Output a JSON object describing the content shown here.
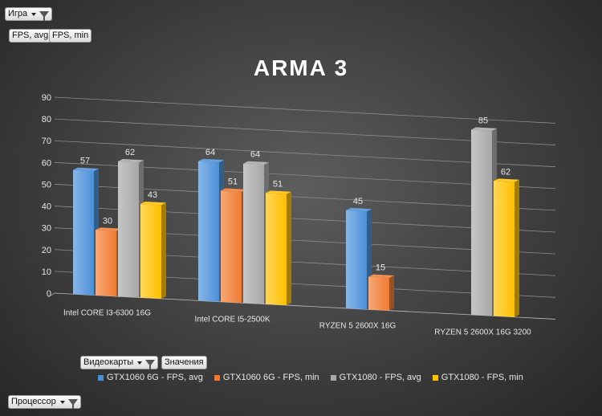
{
  "filters": {
    "game_label": "Игра",
    "values_fields": [
      "FPS, avg",
      "FPS, min"
    ],
    "videocards_label": "Видеокарты",
    "values_label": "Значения",
    "processor_label": "Процессор"
  },
  "chart_data": {
    "type": "bar",
    "title": "ARMA 3",
    "categories": [
      "Intel CORE I3-6300 16G",
      "Intel CORE I5-2500K",
      "RYZEN 5 2600X 16G",
      "RYZEN 5 2600X 16G 3200"
    ],
    "series": [
      {
        "name": "GTX1060 6G - FPS, avg",
        "color": "#4a90d9",
        "values": [
          57,
          64,
          45,
          null
        ]
      },
      {
        "name": "GTX1060 6G - FPS, min",
        "color": "#f07a30",
        "values": [
          30,
          51,
          15,
          null
        ]
      },
      {
        "name": "GTX1080 - FPS, avg",
        "color": "#a8a8a8",
        "values": [
          62,
          64,
          null,
          85
        ]
      },
      {
        "name": "GTX1080 - FPS, min",
        "color": "#ffc000",
        "values": [
          43,
          51,
          null,
          62
        ]
      }
    ],
    "ylim": [
      0,
      90
    ],
    "yticks": [
      0,
      10,
      20,
      30,
      40,
      50,
      60,
      70,
      80,
      90
    ],
    "xlabel": "",
    "ylabel": "",
    "grid": true,
    "legend_position": "bottom"
  }
}
